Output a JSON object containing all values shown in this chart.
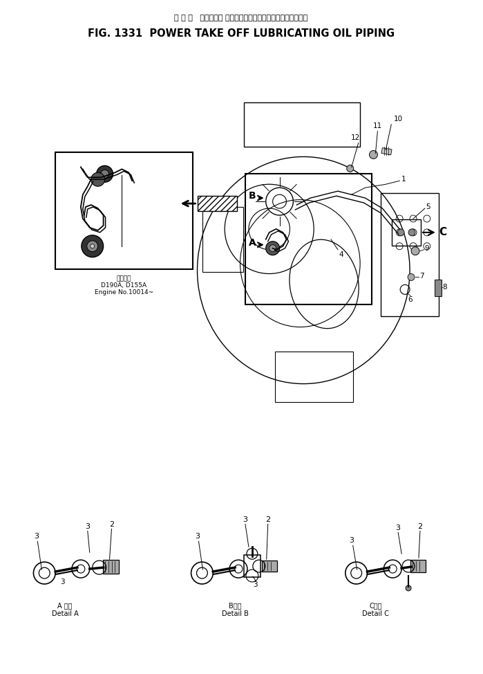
{
  "title_japanese": "パ ワ ー   テークオフ ルーブリケーティングオイルパイピング",
  "title_english": "FIG. 1331  POWER TAKE OFF LUBRICATING OIL PIPING",
  "bg_color": "#ffffff",
  "fig_width": 6.99,
  "fig_height": 9.74,
  "dpi": 100,
  "inset_label_line1": "適用号等",
  "inset_label_line2": "D190A, D155A",
  "inset_label_line3": "Engine No.10014~",
  "detail_a_label1": "A 詳細",
  "detail_a_label2": "Detail A",
  "detail_b_label1": "B詳細",
  "detail_b_label2": "Detail B",
  "detail_c_label1": "C詳細",
  "detail_c_label2": "Detail C"
}
